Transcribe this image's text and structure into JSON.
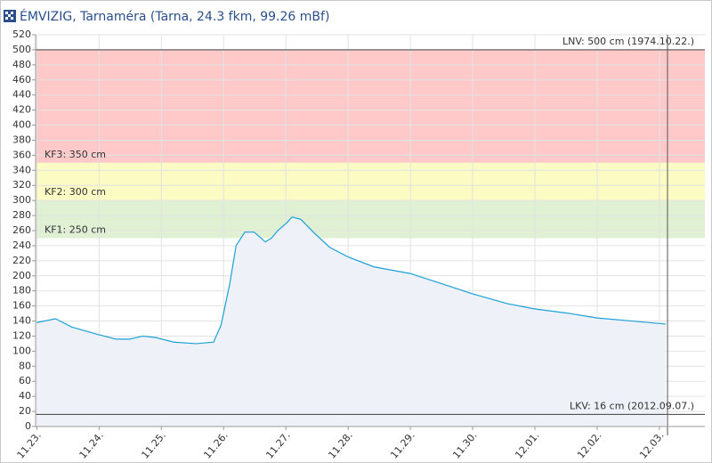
{
  "chart_data": {
    "type": "line",
    "title": "ÉMVIZIG, Tarnaméra (Tarna, 24.3 fkm, 99.26 mBf)",
    "x": [
      0,
      0.3,
      0.56,
      0.99,
      1.27,
      1.49,
      1.7,
      1.91,
      2.2,
      2.56,
      2.84,
      2.96,
      3.1,
      3.2,
      3.34,
      3.49,
      3.67,
      3.77,
      3.87,
      4.01,
      4.1,
      4.24,
      4.44,
      4.7,
      5.0,
      5.41,
      6.0,
      6.56,
      7.0,
      7.56,
      8.0,
      8.56,
      9.0,
      9.56,
      10.1
    ],
    "series": [
      {
        "color": "#1ba1d8",
        "values": [
          138,
          143,
          132,
          122,
          116,
          116,
          120,
          118,
          112,
          110,
          112,
          135,
          190,
          240,
          258,
          258,
          245,
          250,
          260,
          270,
          278,
          275,
          258,
          238,
          225,
          212,
          203,
          188,
          176,
          163,
          156,
          150,
          144,
          140,
          136
        ]
      }
    ],
    "area_color": "#eef1f7",
    "xlim": [
      -0.02,
      10.73
    ],
    "xticks": [
      {
        "value": 0,
        "label": "11.23."
      },
      {
        "value": 1,
        "label": "11.24."
      },
      {
        "value": 2,
        "label": "11.25."
      },
      {
        "value": 3,
        "label": "11.26."
      },
      {
        "value": 4,
        "label": "11.27."
      },
      {
        "value": 5,
        "label": "11.28."
      },
      {
        "value": 6,
        "label": "11.29."
      },
      {
        "value": 7,
        "label": "11.30."
      },
      {
        "value": 8,
        "label": "12.01."
      },
      {
        "value": 9,
        "label": "12.02."
      },
      {
        "value": 10,
        "label": "12.03."
      }
    ],
    "ylim": [
      0,
      520
    ],
    "yticks": [
      0,
      20,
      40,
      60,
      80,
      100,
      120,
      140,
      160,
      180,
      200,
      220,
      240,
      260,
      280,
      300,
      320,
      340,
      360,
      380,
      400,
      420,
      440,
      460,
      480,
      500,
      520
    ],
    "grid": true,
    "bands": [
      {
        "from": 350,
        "to": 500,
        "color": "#ffc9c9"
      },
      {
        "from": 300,
        "to": 350,
        "color": "#fbfbc4"
      },
      {
        "from": 250,
        "to": 300,
        "color": "#dff0d3"
      }
    ],
    "thresholds": [
      {
        "label": "LNV: 500 cm (1974.10.22.)",
        "value": 500,
        "align": "right",
        "line": true
      },
      {
        "label": "KF3: 350 cm",
        "value": 350,
        "align": "left",
        "line": false
      },
      {
        "label": "KF2: 300 cm",
        "value": 300,
        "align": "left",
        "line": false
      },
      {
        "label": "KF1: 250 cm",
        "value": 250,
        "align": "left",
        "line": false
      },
      {
        "label": "LKV: 16 cm (2012.09.07.)",
        "value": 16,
        "align": "right",
        "line": true
      }
    ]
  }
}
